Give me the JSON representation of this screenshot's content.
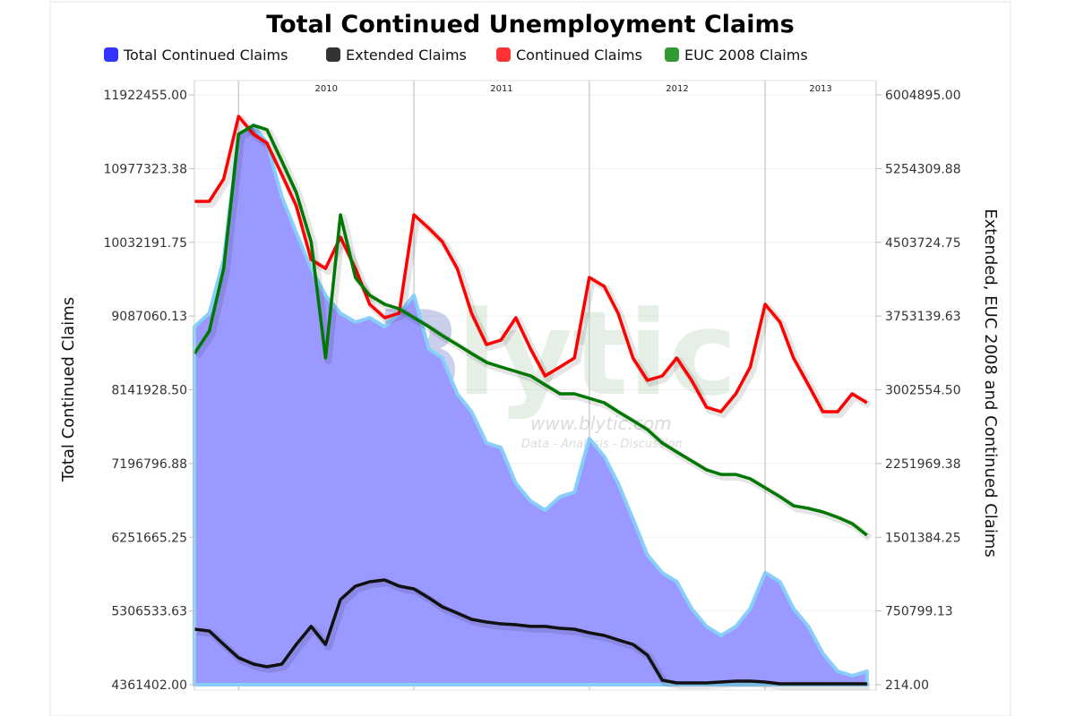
{
  "chart_data": {
    "type": "line",
    "title": "Total Continued Unemployment Claims",
    "watermark": {
      "logo": "Blytic",
      "url": "www.blytic.com",
      "tagline": "Data - Analysis - Discussion"
    },
    "x": [
      "2009-10-01",
      "2009-11-01",
      "2009-12-01",
      "2010-01-01",
      "2010-02-01",
      "2010-03-01",
      "2010-04-01",
      "2010-05-01",
      "2010-06-01",
      "2010-07-01",
      "2010-08-01",
      "2010-09-01",
      "2010-10-01",
      "2010-11-01",
      "2010-12-01",
      "2011-01-01",
      "2011-02-01",
      "2011-03-01",
      "2011-04-01",
      "2011-05-01",
      "2011-06-01",
      "2011-07-01",
      "2011-08-01",
      "2011-09-01",
      "2011-10-01",
      "2011-11-01",
      "2011-12-01",
      "2012-01-01",
      "2012-02-01",
      "2012-03-01",
      "2012-04-01",
      "2012-05-01",
      "2012-06-01",
      "2012-07-01",
      "2012-08-01",
      "2012-09-01",
      "2012-10-01",
      "2012-11-01",
      "2012-12-01",
      "2013-01-01",
      "2013-02-01",
      "2013-03-01",
      "2013-04-01",
      "2013-05-01",
      "2013-06-01",
      "2013-07-01",
      "2013-08-01"
    ],
    "x_ticks": [
      "2010",
      "2011",
      "2012",
      "2013"
    ],
    "y_left": {
      "label": "Total Continued Claims",
      "range": [
        4361402.0,
        11922455.0
      ],
      "ticks": [
        "4361402.00",
        "5306533.63",
        "6251665.25",
        "7196796.88",
        "8141928.50",
        "9087060.13",
        "10032191.75",
        "10977323.38",
        "11922455.00"
      ]
    },
    "y_right": {
      "label": "Extended, EUC 2008 and Continued Claims",
      "range": [
        214.0,
        6004895.0
      ],
      "ticks": [
        "214.00",
        "750799.13",
        "1501384.25",
        "2251969.38",
        "3002554.50",
        "3753139.63",
        "4503724.75",
        "5254309.88",
        "6004895.00"
      ]
    },
    "grid": true,
    "legend_placement": "top",
    "series": [
      {
        "name": "Total Continued Claims",
        "type": "area",
        "axis": "left",
        "color": "#3333ff",
        "fill": "#9999ff",
        "edge": "#87cefa",
        "values": [
          8951000,
          9123000,
          9812000,
          11418000,
          11533000,
          11303000,
          10615000,
          10156000,
          9697000,
          9353000,
          9123000,
          9008000,
          9066000,
          8951000,
          9123000,
          9353000,
          8664000,
          8549000,
          8090000,
          7861000,
          7459000,
          7402000,
          6943000,
          6714000,
          6599000,
          6771000,
          6828000,
          7517000,
          7287000,
          6943000,
          6484000,
          6025000,
          5796000,
          5681000,
          5337000,
          5107000,
          4992000,
          5107000,
          5337000,
          5796000,
          5681000,
          5337000,
          5107000,
          4763000,
          4534000,
          4476000,
          4534000
        ]
      },
      {
        "name": "Extended Claims",
        "type": "line",
        "axis": "right",
        "color": "#111111",
        "values": [
          565000,
          547000,
          410000,
          274000,
          210000,
          182000,
          210000,
          410000,
          593000,
          410000,
          866000,
          1003000,
          1048000,
          1066000,
          1003000,
          975000,
          884000,
          793000,
          729000,
          665000,
          638000,
          620000,
          611000,
          593000,
          593000,
          574000,
          565000,
          529000,
          501000,
          456000,
          410000,
          301000,
          46000,
          18000,
          18000,
          18000,
          28000,
          37000,
          37000,
          28000,
          9000,
          9000,
          9000,
          9000,
          9000,
          9000,
          9000
        ]
      },
      {
        "name": "Continued Claims",
        "type": "line",
        "axis": "right",
        "color": "#ff0000",
        "values": [
          4921000,
          4921000,
          5149000,
          5786000,
          5604000,
          5513000,
          5194000,
          4875000,
          4328000,
          4237000,
          4556000,
          4237000,
          3873000,
          3736000,
          3782000,
          4784000,
          4647000,
          4511000,
          4237000,
          3782000,
          3463000,
          3508000,
          3736000,
          3417000,
          3144000,
          3235000,
          3326000,
          4146000,
          4055000,
          3782000,
          3326000,
          3098000,
          3144000,
          3326000,
          3098000,
          2825000,
          2779000,
          2962000,
          3235000,
          3873000,
          3691000,
          3326000,
          3053000,
          2779000,
          2779000,
          2962000,
          2870000
        ]
      },
      {
        "name": "EUC 2008 Claims",
        "type": "line",
        "axis": "right",
        "color": "#007700",
        "values": [
          3372000,
          3599000,
          4237000,
          5604000,
          5695000,
          5650000,
          5331000,
          5012000,
          4511000,
          3326000,
          4784000,
          4146000,
          3964000,
          3873000,
          3827000,
          3736000,
          3645000,
          3554000,
          3463000,
          3372000,
          3281000,
          3235000,
          3189000,
          3144000,
          3053000,
          2962000,
          2962000,
          2916000,
          2870000,
          2779000,
          2688000,
          2597000,
          2460000,
          2369000,
          2278000,
          2187000,
          2141000,
          2141000,
          2096000,
          2005000,
          1914000,
          1822000,
          1795000,
          1759000,
          1704000,
          1640000,
          1522000
        ]
      }
    ],
    "legend_colors": [
      "#3333ff",
      "#333333",
      "#ff3333",
      "#339933"
    ]
  }
}
